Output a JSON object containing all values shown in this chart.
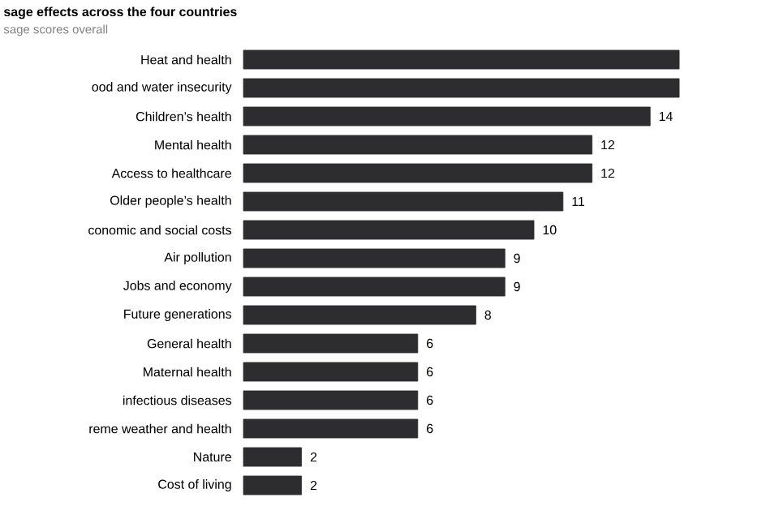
{
  "chart_data": {
    "type": "bar",
    "orientation": "horizontal",
    "title": "sage effects across the four countries",
    "subtitle": "sage scores overall",
    "categories": [
      "Heat and health",
      "ood and water insecurity",
      "Children’s health",
      "Mental health",
      "Access to healthcare",
      "Older people’s health",
      "conomic and social costs",
      "Air pollution",
      "Jobs and economy",
      "Future generations",
      "General health",
      "Maternal health",
      "infectious diseases",
      "reme weather and health",
      "Nature",
      "Cost of living"
    ],
    "values": [
      15,
      15,
      14,
      12,
      12,
      11,
      10,
      9,
      9,
      8,
      6,
      6,
      6,
      6,
      2,
      2
    ],
    "value_labels": [
      null,
      null,
      "14",
      "12",
      "12",
      "11",
      "10",
      "9",
      "9",
      "8",
      "6",
      "6",
      "6",
      "6",
      "2",
      "2"
    ],
    "color": "#2d2d30"
  }
}
